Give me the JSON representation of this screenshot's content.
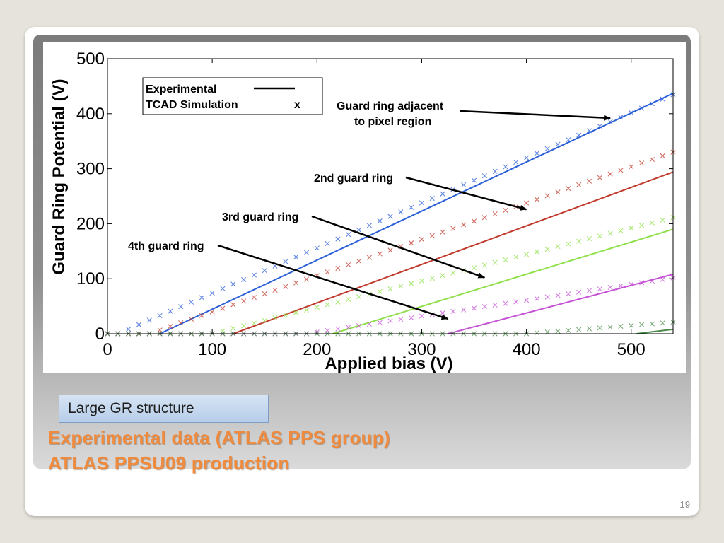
{
  "slide": {
    "label_box": "Large GR structure",
    "caption_line1": "Experimental data (ATLAS PPS group)",
    "caption_line2": "ATLAS PPSU09 production",
    "page_number": "19"
  },
  "chart_data": {
    "type": "line",
    "xlabel": "Applied bias (V)",
    "ylabel": "Guard Ring Potential (V)",
    "xlim": [
      0,
      540
    ],
    "ylim": [
      0,
      500
    ],
    "xticks": [
      0,
      100,
      200,
      300,
      400,
      500
    ],
    "yticks": [
      0,
      100,
      200,
      300,
      400,
      500
    ],
    "legend": {
      "position": "top-left",
      "entries": [
        {
          "label": "Experimental",
          "symbol": "line"
        },
        {
          "label": "TCAD Simulation",
          "symbol": "x"
        }
      ]
    },
    "series": [
      {
        "color": "#2b5fd8",
        "experimental": [
          [
            50,
            0
          ],
          [
            540,
            437
          ]
        ],
        "simulation": {
          "threshold": 10,
          "slope": 0.82
        }
      },
      {
        "color": "#c0392b",
        "experimental": [
          [
            120,
            0
          ],
          [
            540,
            294
          ]
        ],
        "simulation": {
          "threshold": 40,
          "slope": 0.66
        }
      },
      {
        "color": "#8fe04a",
        "experimental": [
          [
            215,
            0
          ],
          [
            540,
            190
          ]
        ],
        "simulation": {
          "threshold": 100,
          "slope": 0.48
        }
      },
      {
        "color": "#c653d6",
        "experimental": [
          [
            325,
            0
          ],
          [
            540,
            108
          ]
        ],
        "simulation": {
          "threshold": 190,
          "slope": 0.29
        }
      },
      {
        "color": "#4a8a4a",
        "experimental": [
          [
            505,
            0
          ],
          [
            540,
            8
          ]
        ],
        "simulation": {
          "threshold": 400,
          "slope": 0.15
        }
      }
    ],
    "annotations": [
      {
        "text_lines": [
          "Guard ring adjacent",
          "to pixel region"
        ],
        "arrow_to": [
          480,
          392
        ]
      },
      {
        "text_lines": [
          "2nd guard ring"
        ],
        "arrow_to": [
          400,
          226
        ]
      },
      {
        "text_lines": [
          "3rd guard ring"
        ],
        "arrow_to": [
          360,
          102
        ]
      },
      {
        "text_lines": [
          "4th guard ring"
        ],
        "arrow_to": [
          325,
          27
        ]
      }
    ]
  }
}
